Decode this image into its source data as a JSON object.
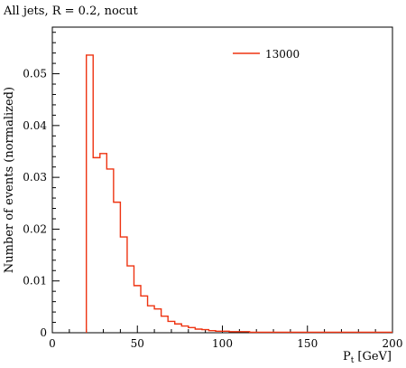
{
  "chart_data": {
    "type": "line",
    "title": "All jets, R = 0.2, nocut",
    "xlabel": "P",
    "xlabel_sub": "t",
    "xlabel_unit": "[GeV]",
    "ylabel": "Number of events (normalized)",
    "xlim": [
      0,
      200
    ],
    "ylim": [
      0,
      0.059
    ],
    "x_ticks": [
      0,
      50,
      100,
      150,
      200
    ],
    "y_ticks": [
      0,
      0.01,
      0.02,
      0.03,
      0.04,
      0.05
    ],
    "x_tick_labels": [
      "0",
      "50",
      "100",
      "150",
      "200"
    ],
    "y_tick_labels": [
      "0",
      "0.01",
      "0.02",
      "0.03",
      "0.04",
      "0.05"
    ],
    "legend_placement": "top-right",
    "grid": false,
    "series": [
      {
        "name": "13000",
        "color": "#ee3311",
        "style": "step-histogram",
        "bin_edges": [
          20,
          24,
          28,
          32,
          36,
          40,
          44,
          48,
          52,
          56,
          60,
          64,
          68,
          72,
          76,
          80,
          84,
          88,
          92,
          96,
          100,
          104,
          108,
          112,
          116,
          120,
          124,
          128,
          132,
          136,
          140,
          144,
          148,
          152,
          156,
          160,
          164,
          168,
          172,
          176,
          180,
          184,
          188,
          192,
          196,
          200
        ],
        "values": [
          0.0536,
          0.0338,
          0.0346,
          0.0316,
          0.0252,
          0.0185,
          0.0129,
          0.0091,
          0.0071,
          0.0052,
          0.0046,
          0.0032,
          0.0022,
          0.0017,
          0.0013,
          0.001,
          0.0007,
          0.0006,
          0.0004,
          0.0003,
          0.0003,
          0.0002,
          0.0002,
          0.0002,
          0.0001,
          0.0001,
          0.0001,
          0.0001,
          0.0001,
          0.0001,
          0.0001,
          0.0001,
          0.0001,
          0.0001,
          0.0001,
          0.0001,
          0.0001,
          0.0001,
          0.0001,
          0.0001,
          0.0001,
          0.0001,
          0.0001,
          0.0001,
          0.0001
        ]
      }
    ]
  }
}
